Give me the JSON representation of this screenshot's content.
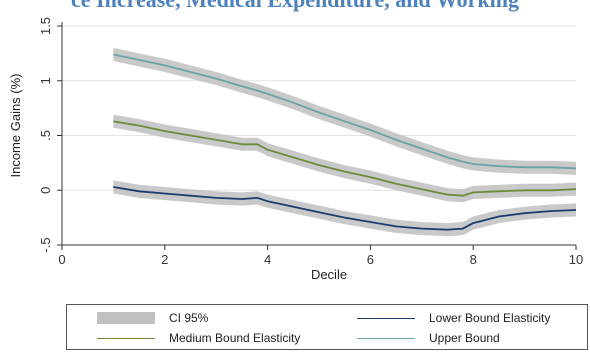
{
  "header": {
    "title": "ce Increase, Medical Expenditure, and Working"
  },
  "colors": {
    "ci_band": "#c0c0c0",
    "lower": "#1c3d6e",
    "medium": "#6f8a3a",
    "upper": "#6aa3a4",
    "title": "#4f81bd"
  },
  "chart_data": {
    "type": "line",
    "xlabel": "Decile",
    "ylabel": "Income Gains (%)",
    "xlim": [
      0,
      10
    ],
    "ylim": [
      -0.5,
      1.5
    ],
    "xticks": [
      0,
      2,
      4,
      6,
      8,
      10
    ],
    "yticks": [
      -0.5,
      0,
      0.5,
      1,
      1.5
    ],
    "ytick_labels": [
      "-.5",
      "0",
      ".5",
      "1",
      "1.5"
    ],
    "grid": "horizontal",
    "ci_label": "CI 95%",
    "ci_halfwidth": 0.06,
    "x": [
      1,
      1.5,
      2,
      2.5,
      3,
      3.5,
      3.8,
      4,
      4.5,
      5,
      5.5,
      6,
      6.5,
      7,
      7.5,
      7.8,
      8,
      8.5,
      9,
      9.5,
      10
    ],
    "series": [
      {
        "name": "Lower Bound Elasticity",
        "key": "lower",
        "values": [
          0.03,
          -0.01,
          -0.03,
          -0.05,
          -0.07,
          -0.08,
          -0.07,
          -0.1,
          -0.15,
          -0.2,
          -0.25,
          -0.29,
          -0.33,
          -0.35,
          -0.36,
          -0.35,
          -0.3,
          -0.24,
          -0.21,
          -0.19,
          -0.18
        ]
      },
      {
        "name": "Medium Bound Elasticity",
        "key": "medium",
        "values": [
          0.63,
          0.59,
          0.54,
          0.5,
          0.46,
          0.42,
          0.42,
          0.37,
          0.3,
          0.23,
          0.17,
          0.12,
          0.06,
          0.01,
          -0.04,
          -0.05,
          -0.02,
          -0.01,
          0.0,
          0.0,
          0.01
        ]
      },
      {
        "name": "Upper Bound",
        "key": "upper",
        "values": [
          1.24,
          1.19,
          1.14,
          1.08,
          1.02,
          0.95,
          0.91,
          0.88,
          0.8,
          0.71,
          0.63,
          0.55,
          0.46,
          0.38,
          0.3,
          0.26,
          0.24,
          0.22,
          0.21,
          0.21,
          0.2
        ]
      }
    ]
  },
  "legend": {
    "ci": "CI 95%",
    "lower": "Lower Bound Elasticity",
    "medium": "Medium Bound Elasticity",
    "upper": "Upper Bound"
  }
}
